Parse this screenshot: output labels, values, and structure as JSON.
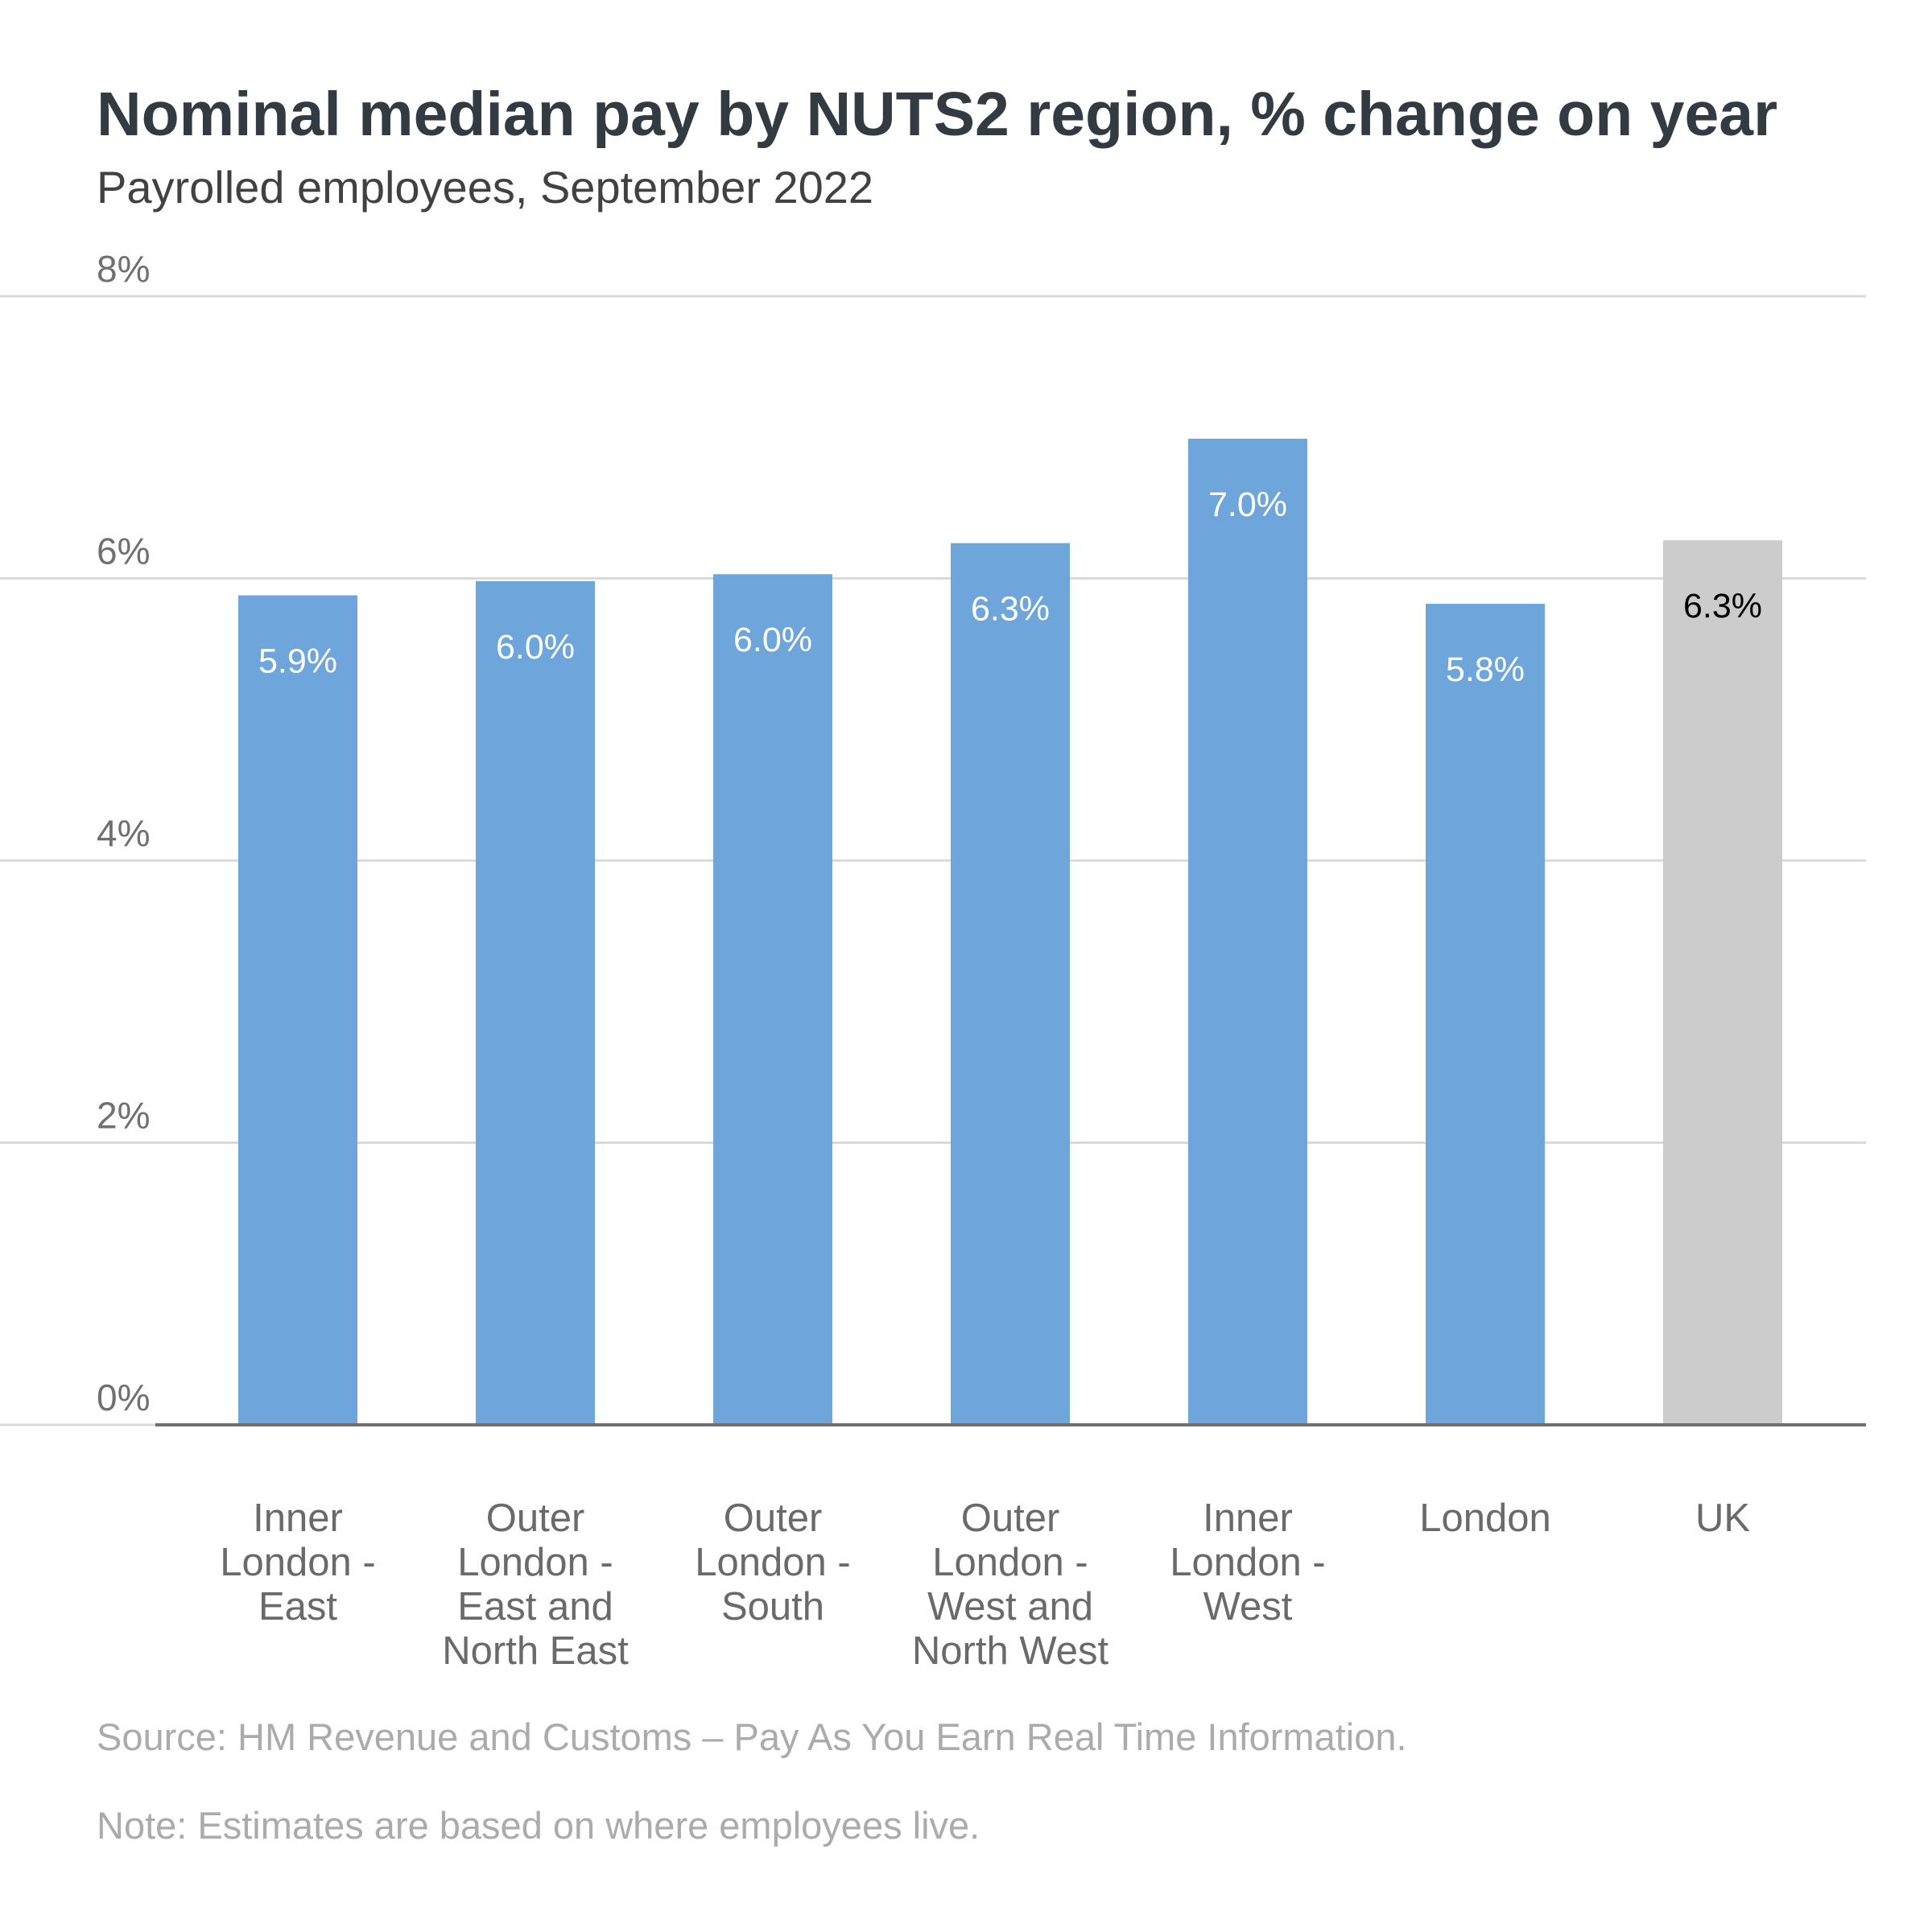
{
  "chart_data": {
    "type": "bar",
    "title": "Nominal median pay by NUTS2 region, % change on year",
    "subtitle": "Payrolled employees, September 2022",
    "categories": [
      "Inner London - East",
      "Outer London - East and North East",
      "Outer London - South",
      "Outer London - West and North West",
      "Inner London - West",
      "London",
      "UK"
    ],
    "category_lines": [
      [
        "Inner",
        "London -",
        "East"
      ],
      [
        "Outer",
        "London -",
        "East and",
        "North East"
      ],
      [
        "Outer",
        "London -",
        "South"
      ],
      [
        "Outer",
        "London -",
        "West and",
        "North West"
      ],
      [
        "Inner",
        "London -",
        "West"
      ],
      [
        "London"
      ],
      [
        "UK"
      ]
    ],
    "values": [
      5.88,
      5.98,
      6.03,
      6.25,
      6.99,
      5.82,
      6.27
    ],
    "data_labels": [
      "5.9%",
      "6.0%",
      "6.0%",
      "6.3%",
      "7.0%",
      "5.8%",
      "6.3%"
    ],
    "bar_colors": [
      "#6ea6dc",
      "#6ea6dc",
      "#6ea6dc",
      "#6ea6dc",
      "#6ea6dc",
      "#6ea6dc",
      "#cccccc"
    ],
    "label_colors": [
      "#ffffff",
      "#ffffff",
      "#ffffff",
      "#ffffff",
      "#ffffff",
      "#ffffff",
      "#000000"
    ],
    "ylim": [
      0,
      8
    ],
    "yticks": [
      0,
      2,
      4,
      6,
      8
    ],
    "ytick_labels": [
      "0%",
      "2%",
      "4%",
      "6%",
      "8%"
    ],
    "xlabel": "",
    "ylabel": "",
    "grid": true,
    "legend": false
  },
  "source": "Source: HM Revenue and Customs – Pay As You Earn Real Time Information.",
  "note": "Note: Estimates are based on where employees live."
}
